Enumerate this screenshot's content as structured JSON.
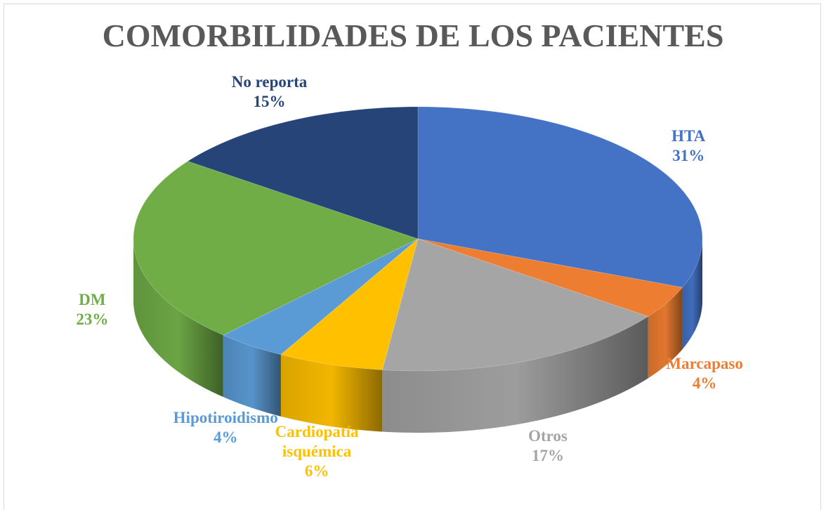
{
  "chart_data": {
    "type": "pie3d",
    "title": "COMORBILIDADES DE LOS PACIENTES",
    "categories": [
      "HTA",
      "Marcapaso",
      "Otros",
      "Cardiopatía isquémica",
      "Hipotiroidismo",
      "DM",
      "No reporta"
    ],
    "values": [
      31,
      4,
      17,
      6,
      4,
      23,
      15
    ],
    "value_labels": [
      "31%",
      "4%",
      "17%",
      "6%",
      "4%",
      "23%",
      "15%"
    ],
    "colors": [
      "#4472c4",
      "#ed7d31",
      "#a5a5a5",
      "#ffc000",
      "#5b9bd5",
      "#70ad47",
      "#264478"
    ]
  }
}
